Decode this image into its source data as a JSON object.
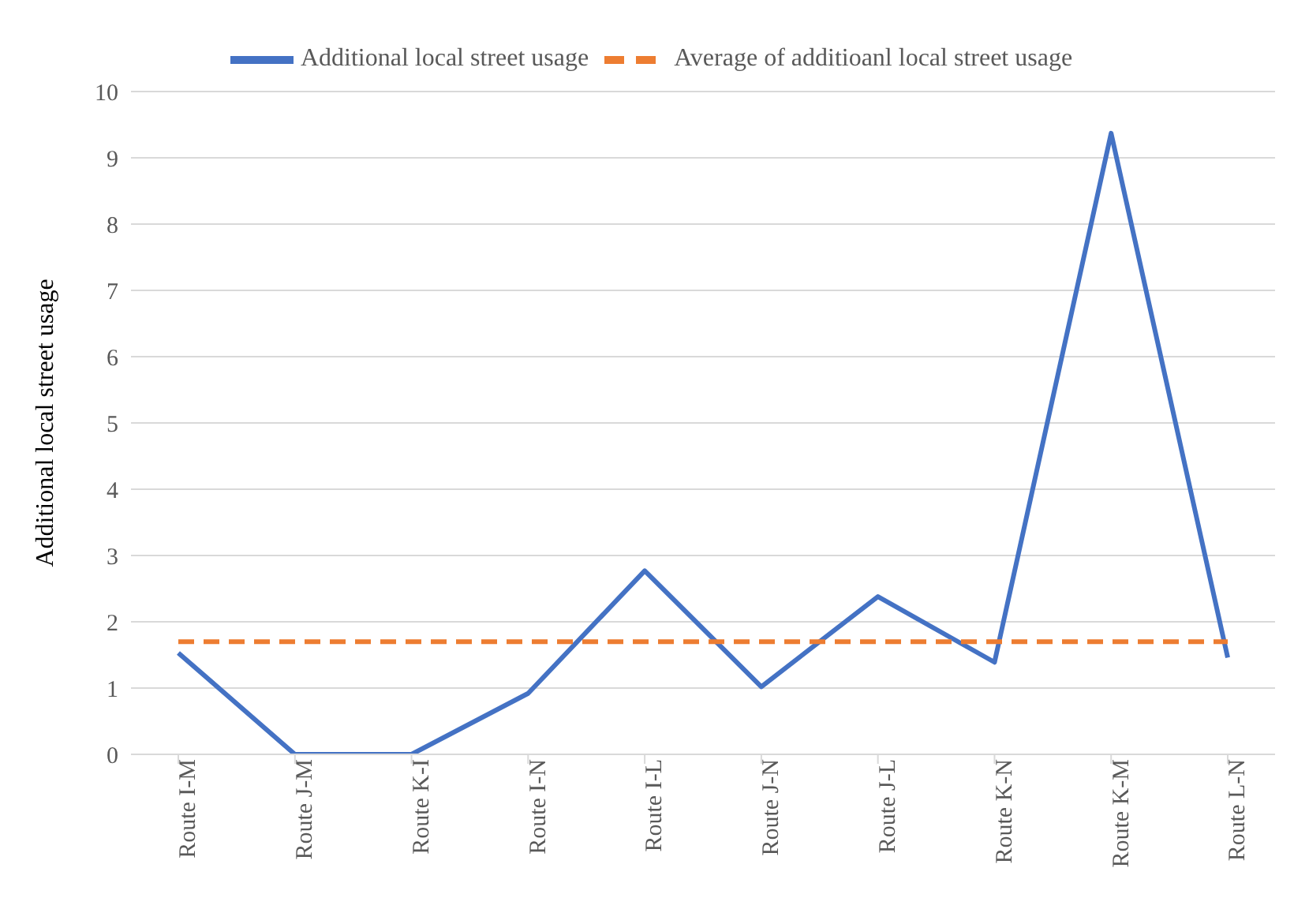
{
  "chart_data": {
    "type": "line",
    "ylabel": "Additional local street usage",
    "categories": [
      "Route I-M",
      "Route J-M",
      "Route K-I",
      "Route I-N",
      "Route I-L",
      "Route J-N",
      "Route J-L",
      "Route K-N",
      "Route K-M",
      "Route L-N"
    ],
    "series": [
      {
        "name": "Additional local street usage",
        "color": "#4472c4",
        "line_style": "solid",
        "values": [
          1.53,
          0,
          0,
          0.92,
          2.77,
          1.02,
          2.38,
          1.39,
          9.37,
          1.46
        ]
      },
      {
        "name": "Average of additioanl local street usage",
        "color": "#ed7d31",
        "line_style": "dashed",
        "values": [
          1.7,
          1.7,
          1.7,
          1.7,
          1.7,
          1.7,
          1.7,
          1.7,
          1.7,
          1.7
        ]
      }
    ],
    "ylim": [
      0,
      10
    ],
    "yticks": [
      0,
      1,
      2,
      3,
      4,
      5,
      6,
      7,
      8,
      9,
      10
    ],
    "grid": "y",
    "legend": "top",
    "marker": "none"
  }
}
